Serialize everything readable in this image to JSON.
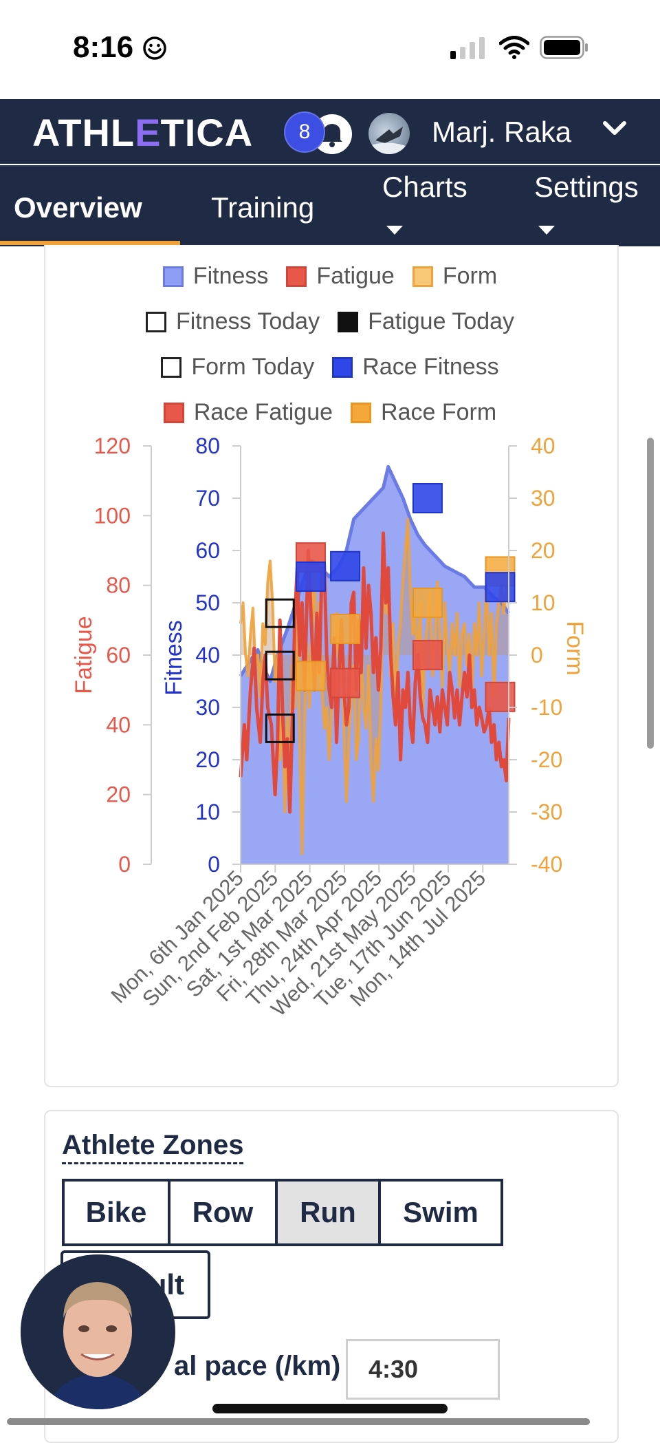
{
  "status_bar": {
    "time": "8:16"
  },
  "header": {
    "logo_left": "ATHL",
    "logo_accent": "E",
    "logo_right": "TICA",
    "notification_count": "8",
    "user_name": "Marj. Raka"
  },
  "nav": {
    "tabs": [
      {
        "label": "Overview",
        "active": true
      },
      {
        "label": "Training"
      },
      {
        "label": "Charts",
        "has_dropdown": true
      },
      {
        "label": "Settings",
        "has_dropdown": true
      }
    ]
  },
  "chart_data": {
    "type": "area",
    "legend": [
      {
        "name": "Fitness",
        "color": "#8f9ef5",
        "border": "#6a7be6"
      },
      {
        "name": "Fatigue",
        "color": "#e8584a",
        "border": "#d2463a"
      },
      {
        "name": "Form",
        "color": "#f8c777",
        "border": "#f0a23a"
      },
      {
        "name": "Fitness Today",
        "color": "#ffffff",
        "border": "#222222"
      },
      {
        "name": "Fatigue Today",
        "color": "#111111",
        "border": "#111111"
      },
      {
        "name": "Form Today",
        "color": "#ffffff",
        "border": "#222222"
      },
      {
        "name": "Race Fitness",
        "color": "#3047e8",
        "border": "#1f35c9"
      },
      {
        "name": "Race Fatigue",
        "color": "#e8584a",
        "border": "#d2463a"
      },
      {
        "name": "Race Form",
        "color": "#f5a83a",
        "border": "#e89624"
      }
    ],
    "axes": {
      "fatigue": {
        "label": "Fatigue",
        "ticks": [
          "0",
          "20",
          "40",
          "60",
          "80",
          "100",
          "120"
        ],
        "range": [
          0,
          120
        ],
        "color": "#e8584a"
      },
      "fitness": {
        "label": "Fitness",
        "ticks": [
          "0",
          "10",
          "20",
          "30",
          "40",
          "50",
          "60",
          "70",
          "80"
        ],
        "range": [
          0,
          80
        ],
        "color": "#2233cc"
      },
      "form": {
        "label": "Form",
        "ticks": [
          "-40",
          "-30",
          "-20",
          "-10",
          "0",
          "10",
          "20",
          "30",
          "40"
        ],
        "range": [
          -40,
          40
        ],
        "color": "#f0a23a"
      }
    },
    "x_ticks": [
      "Mon, 6th Jan 2025",
      "Sun, 2nd Feb 2025",
      "Sat, 1st Mar 2025",
      "Fri, 28th Mar 2025",
      "Thu, 24th Apr 2025",
      "Wed, 21st May 2025",
      "Tue, 17th Jun 2025",
      "Mon, 14th Jul 2025"
    ],
    "x_range_days": [
      0,
      218
    ],
    "fitness": [
      [
        0,
        36
      ],
      [
        8,
        39
      ],
      [
        14,
        41
      ],
      [
        18,
        38
      ],
      [
        24,
        35
      ],
      [
        30,
        40
      ],
      [
        38,
        45
      ],
      [
        45,
        50
      ],
      [
        52,
        55
      ],
      [
        58,
        58
      ],
      [
        64,
        57
      ],
      [
        72,
        55
      ],
      [
        80,
        57
      ],
      [
        86,
        60
      ],
      [
        92,
        66
      ],
      [
        100,
        68
      ],
      [
        108,
        70
      ],
      [
        116,
        72
      ],
      [
        120,
        76
      ],
      [
        126,
        73
      ],
      [
        132,
        70
      ],
      [
        138,
        66
      ],
      [
        144,
        63
      ],
      [
        150,
        61
      ],
      [
        158,
        59
      ],
      [
        166,
        57
      ],
      [
        174,
        56
      ],
      [
        182,
        55
      ],
      [
        190,
        53
      ],
      [
        198,
        53
      ],
      [
        206,
        51
      ],
      [
        212,
        50
      ],
      [
        218,
        48
      ]
    ],
    "fatigue": [
      [
        0,
        25
      ],
      [
        3,
        40
      ],
      [
        5,
        30
      ],
      [
        8,
        50
      ],
      [
        11,
        62
      ],
      [
        13,
        45
      ],
      [
        16,
        35
      ],
      [
        18,
        52
      ],
      [
        20,
        60
      ],
      [
        22,
        45
      ],
      [
        25,
        40
      ],
      [
        28,
        20
      ],
      [
        30,
        35
      ],
      [
        32,
        70
      ],
      [
        34,
        45
      ],
      [
        36,
        28
      ],
      [
        38,
        36
      ],
      [
        40,
        15
      ],
      [
        42,
        40
      ],
      [
        44,
        70
      ],
      [
        46,
        85
      ],
      [
        48,
        60
      ],
      [
        50,
        75
      ],
      [
        52,
        50
      ],
      [
        55,
        90
      ],
      [
        58,
        65
      ],
      [
        60,
        50
      ],
      [
        62,
        72
      ],
      [
        64,
        55
      ],
      [
        66,
        84
      ],
      [
        68,
        86
      ],
      [
        70,
        60
      ],
      [
        72,
        50
      ],
      [
        74,
        45
      ],
      [
        76,
        65
      ],
      [
        78,
        35
      ],
      [
        80,
        55
      ],
      [
        82,
        70
      ],
      [
        84,
        50
      ],
      [
        86,
        40
      ],
      [
        88,
        45
      ],
      [
        90,
        75
      ],
      [
        92,
        78
      ],
      [
        94,
        50
      ],
      [
        96,
        70
      ],
      [
        98,
        55
      ],
      [
        100,
        85
      ],
      [
        102,
        62
      ],
      [
        104,
        80
      ],
      [
        106,
        72
      ],
      [
        108,
        55
      ],
      [
        110,
        65
      ],
      [
        112,
        50
      ],
      [
        114,
        62
      ],
      [
        116,
        95
      ],
      [
        118,
        75
      ],
      [
        120,
        85
      ],
      [
        122,
        60
      ],
      [
        124,
        48
      ],
      [
        126,
        40
      ],
      [
        128,
        55
      ],
      [
        130,
        30
      ],
      [
        132,
        50
      ],
      [
        134,
        45
      ],
      [
        136,
        55
      ],
      [
        138,
        40
      ],
      [
        140,
        35
      ],
      [
        142,
        52
      ],
      [
        144,
        60
      ],
      [
        146,
        48
      ],
      [
        148,
        42
      ],
      [
        150,
        40
      ],
      [
        152,
        35
      ],
      [
        154,
        50
      ],
      [
        156,
        45
      ],
      [
        158,
        40
      ],
      [
        160,
        48
      ],
      [
        162,
        38
      ],
      [
        164,
        50
      ],
      [
        166,
        45
      ],
      [
        168,
        40
      ],
      [
        170,
        55
      ],
      [
        172,
        50
      ],
      [
        174,
        42
      ],
      [
        176,
        50
      ],
      [
        178,
        40
      ],
      [
        180,
        48
      ],
      [
        182,
        55
      ],
      [
        184,
        48
      ],
      [
        186,
        60
      ],
      [
        188,
        45
      ],
      [
        190,
        50
      ],
      [
        192,
        40
      ],
      [
        194,
        45
      ],
      [
        196,
        42
      ],
      [
        198,
        38
      ],
      [
        200,
        40
      ],
      [
        202,
        45
      ],
      [
        204,
        35
      ],
      [
        206,
        40
      ],
      [
        208,
        30
      ],
      [
        210,
        35
      ],
      [
        212,
        28
      ],
      [
        214,
        30
      ],
      [
        216,
        24
      ],
      [
        218,
        42
      ]
    ],
    "form": [
      [
        0,
        6
      ],
      [
        2,
        10
      ],
      [
        4,
        0
      ],
      [
        6,
        -4
      ],
      [
        8,
        4
      ],
      [
        10,
        9
      ],
      [
        12,
        -2
      ],
      [
        14,
        0
      ],
      [
        16,
        -8
      ],
      [
        18,
        6
      ],
      [
        20,
        2
      ],
      [
        22,
        14
      ],
      [
        24,
        18
      ],
      [
        26,
        10
      ],
      [
        28,
        -5
      ],
      [
        30,
        0
      ],
      [
        32,
        -20
      ],
      [
        34,
        -10
      ],
      [
        36,
        -30
      ],
      [
        38,
        -12
      ],
      [
        40,
        -28
      ],
      [
        42,
        -2
      ],
      [
        44,
        -10
      ],
      [
        46,
        8
      ],
      [
        48,
        -15
      ],
      [
        50,
        -38
      ],
      [
        52,
        -12
      ],
      [
        54,
        2
      ],
      [
        56,
        -10
      ],
      [
        58,
        6
      ],
      [
        60,
        18
      ],
      [
        62,
        -4
      ],
      [
        64,
        10
      ],
      [
        66,
        -6
      ],
      [
        68,
        -14
      ],
      [
        70,
        -10
      ],
      [
        72,
        -20
      ],
      [
        74,
        -10
      ],
      [
        76,
        -4
      ],
      [
        78,
        8
      ],
      [
        80,
        -2
      ],
      [
        82,
        4
      ],
      [
        84,
        -14
      ],
      [
        86,
        -28
      ],
      [
        88,
        -16
      ],
      [
        90,
        -8
      ],
      [
        92,
        -2
      ],
      [
        94,
        -20
      ],
      [
        96,
        -16
      ],
      [
        98,
        2
      ],
      [
        100,
        -10
      ],
      [
        102,
        -14
      ],
      [
        104,
        -2
      ],
      [
        106,
        -20
      ],
      [
        108,
        -28
      ],
      [
        110,
        -16
      ],
      [
        112,
        -22
      ],
      [
        114,
        -10
      ],
      [
        116,
        20
      ],
      [
        118,
        8
      ],
      [
        120,
        14
      ],
      [
        122,
        -4
      ],
      [
        124,
        6
      ],
      [
        126,
        -12
      ],
      [
        128,
        2
      ],
      [
        130,
        6
      ],
      [
        132,
        14
      ],
      [
        134,
        20
      ],
      [
        136,
        26
      ],
      [
        138,
        12
      ],
      [
        140,
        4
      ],
      [
        142,
        8
      ],
      [
        144,
        -2
      ],
      [
        146,
        10
      ],
      [
        148,
        -12
      ],
      [
        150,
        2
      ],
      [
        152,
        6
      ],
      [
        154,
        12
      ],
      [
        156,
        -4
      ],
      [
        158,
        2
      ],
      [
        160,
        14
      ],
      [
        162,
        4
      ],
      [
        164,
        -6
      ],
      [
        166,
        10
      ],
      [
        168,
        2
      ],
      [
        170,
        -4
      ],
      [
        172,
        6
      ],
      [
        174,
        0
      ],
      [
        176,
        8
      ],
      [
        178,
        -6
      ],
      [
        180,
        4
      ],
      [
        182,
        6
      ],
      [
        184,
        -2
      ],
      [
        186,
        4
      ],
      [
        188,
        -8
      ],
      [
        190,
        6
      ],
      [
        192,
        0
      ],
      [
        194,
        10
      ],
      [
        196,
        -4
      ],
      [
        198,
        4
      ],
      [
        200,
        14
      ],
      [
        202,
        0
      ],
      [
        204,
        8
      ],
      [
        206,
        -8
      ],
      [
        208,
        6
      ],
      [
        210,
        10
      ],
      [
        212,
        14
      ],
      [
        214,
        8
      ],
      [
        216,
        14
      ],
      [
        218,
        10
      ]
    ],
    "today": {
      "day": 32,
      "fitness": 38,
      "fatigue_form_top": 8,
      "form": -14
    },
    "race_markers": [
      {
        "day": 57,
        "fitness": 55,
        "fatigue": 88,
        "form": -4
      },
      {
        "day": 85,
        "fitness": 57,
        "fatigue": 52,
        "form": 5
      },
      {
        "day": 152,
        "fitness": 70,
        "fatigue": 60,
        "form": 10
      },
      {
        "day": 211,
        "fitness": 53,
        "fatigue": 48,
        "form": 16
      }
    ],
    "race_extra_fatigue": [
      {
        "day": 211,
        "fatigue": 48
      }
    ],
    "race_extra_form": [
      {
        "day": 57,
        "form": -6
      },
      {
        "day": 211,
        "form": 16
      }
    ]
  },
  "zones": {
    "title": "Athlete Zones",
    "buttons": [
      {
        "label": "Bike"
      },
      {
        "label": "Row"
      },
      {
        "label": "Run",
        "active": true
      },
      {
        "label": "Swim"
      }
    ],
    "default_button": "ult",
    "pace_label": "al pace (/km)",
    "pace_value": "4:30"
  }
}
